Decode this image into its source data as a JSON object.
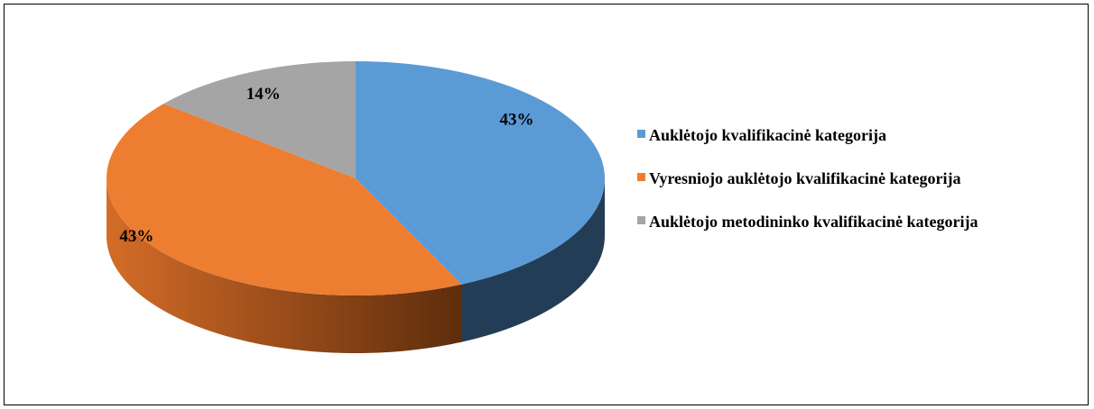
{
  "chart_data": {
    "type": "pie",
    "categories": [
      "Auklėtojo kvalifikacinė kategorija",
      "Vyresniojo auklėtojo kvalifikacinė kategorija",
      "Auklėtojo metodininko kvalifikacinė kategorija"
    ],
    "values": [
      43,
      43,
      14
    ],
    "value_labels": [
      "43%",
      "43%",
      "14%"
    ],
    "colors": [
      "#5b9bd5",
      "#ed7d31",
      "#a5a5a5"
    ],
    "legend": "right"
  }
}
